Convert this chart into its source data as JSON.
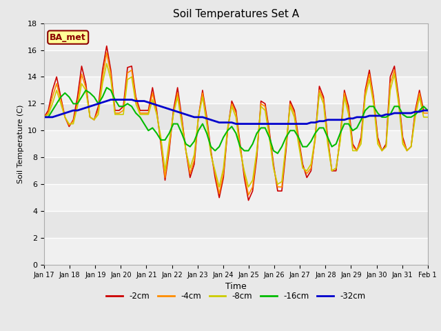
{
  "title": "Soil Temperatures Set A",
  "xlabel": "Time",
  "ylabel": "Soil Temperature (C)",
  "ylim": [
    0,
    18
  ],
  "yticks": [
    0,
    2,
    4,
    6,
    8,
    10,
    12,
    14,
    16,
    18
  ],
  "annotation_text": "BA_met",
  "annotation_color": "#8B0000",
  "annotation_bg": "#FFFF99",
  "fig_facecolor": "#E8E8E8",
  "ax_facecolor": "#F0F0F0",
  "legend_entries": [
    "-2cm",
    "-4cm",
    "-8cm",
    "-16cm",
    "-32cm"
  ],
  "line_colors": [
    "#CC0000",
    "#FF8C00",
    "#CCCC00",
    "#00BB00",
    "#0000CC"
  ],
  "line_widths": [
    1.2,
    1.2,
    1.2,
    1.5,
    2.0
  ],
  "xtick_labels": [
    "Jan 17",
    "Jan 18",
    "Jan 19",
    "Jan 20",
    "Jan 21",
    "Jan 22",
    "Jan 23",
    "Jan 24",
    "Jan 25",
    "Jan 26",
    "Jan 27",
    "Jan 28",
    "Jan 29",
    "Jan 30",
    "Jan 31",
    "Feb 1"
  ],
  "y_2cm": [
    11.0,
    11.5,
    13.0,
    14.0,
    12.5,
    11.0,
    10.3,
    10.8,
    12.5,
    14.8,
    13.5,
    11.0,
    10.8,
    11.8,
    14.5,
    16.3,
    14.5,
    11.5,
    11.5,
    11.8,
    14.7,
    14.8,
    12.5,
    11.5,
    11.5,
    11.5,
    13.2,
    11.5,
    9.0,
    6.3,
    8.5,
    11.5,
    13.2,
    11.0,
    8.5,
    6.5,
    7.5,
    11.0,
    13.0,
    11.0,
    8.5,
    6.5,
    5.0,
    6.5,
    10.0,
    12.2,
    11.5,
    9.0,
    6.5,
    4.8,
    5.5,
    8.0,
    12.2,
    12.0,
    10.0,
    7.5,
    5.5,
    5.5,
    8.5,
    12.2,
    11.5,
    9.5,
    7.5,
    6.5,
    7.0,
    9.5,
    13.3,
    12.5,
    9.5,
    7.0,
    7.0,
    9.5,
    13.0,
    11.8,
    9.0,
    8.5,
    9.5,
    13.0,
    14.5,
    12.5,
    9.5,
    8.5,
    9.0,
    14.0,
    14.8,
    12.5,
    9.5,
    8.5,
    8.8,
    11.5,
    13.0,
    11.5,
    11.5
  ],
  "y_4cm": [
    11.0,
    11.3,
    12.5,
    13.5,
    12.3,
    11.0,
    10.4,
    10.7,
    12.0,
    14.2,
    13.2,
    11.0,
    10.8,
    11.5,
    14.0,
    15.8,
    14.2,
    11.3,
    11.3,
    11.5,
    14.3,
    14.5,
    12.3,
    11.3,
    11.3,
    11.3,
    12.8,
    11.3,
    9.2,
    6.5,
    8.8,
    11.3,
    12.8,
    10.8,
    8.5,
    6.8,
    7.8,
    11.0,
    12.8,
    10.8,
    8.3,
    6.8,
    5.3,
    6.8,
    10.0,
    12.0,
    11.3,
    8.8,
    6.8,
    5.2,
    5.8,
    8.3,
    12.0,
    11.8,
    9.8,
    7.3,
    5.8,
    5.8,
    8.8,
    12.0,
    11.3,
    9.3,
    7.3,
    6.8,
    7.2,
    9.3,
    13.0,
    12.3,
    9.3,
    7.0,
    7.2,
    9.3,
    12.8,
    11.5,
    8.8,
    8.5,
    9.3,
    12.8,
    14.2,
    12.3,
    9.3,
    8.5,
    8.8,
    13.5,
    14.5,
    12.3,
    9.3,
    8.5,
    8.8,
    11.3,
    12.8,
    11.3,
    11.3
  ],
  "y_8cm": [
    11.0,
    11.2,
    12.0,
    13.0,
    12.0,
    11.0,
    10.5,
    10.5,
    11.8,
    13.5,
    13.0,
    11.0,
    10.8,
    11.2,
    13.5,
    15.0,
    13.8,
    11.2,
    11.2,
    11.2,
    13.8,
    14.0,
    12.0,
    11.2,
    11.2,
    11.2,
    12.3,
    11.2,
    9.5,
    7.0,
    9.2,
    11.2,
    12.5,
    10.5,
    8.5,
    7.2,
    8.2,
    11.0,
    12.5,
    10.5,
    8.2,
    7.0,
    5.8,
    7.2,
    10.2,
    11.8,
    11.0,
    8.5,
    7.0,
    5.8,
    6.3,
    8.5,
    11.8,
    11.5,
    9.5,
    7.2,
    6.0,
    6.2,
    9.0,
    11.8,
    11.0,
    9.0,
    7.2,
    7.0,
    7.5,
    9.5,
    12.8,
    12.0,
    9.0,
    7.0,
    7.2,
    9.2,
    12.5,
    11.2,
    8.5,
    8.5,
    9.0,
    12.5,
    13.8,
    12.0,
    9.0,
    8.5,
    8.8,
    13.0,
    14.2,
    12.0,
    9.0,
    8.5,
    8.8,
    11.0,
    12.5,
    11.0,
    11.0
  ],
  "y_16cm": [
    11.0,
    11.0,
    11.5,
    12.0,
    12.5,
    12.8,
    12.5,
    12.0,
    12.0,
    12.5,
    13.0,
    12.8,
    12.5,
    12.0,
    12.5,
    13.2,
    13.0,
    12.3,
    11.8,
    11.8,
    12.0,
    11.8,
    11.3,
    11.0,
    10.5,
    10.0,
    10.2,
    9.8,
    9.3,
    9.3,
    9.8,
    10.5,
    10.5,
    9.8,
    9.0,
    8.8,
    9.2,
    10.0,
    10.5,
    9.8,
    8.8,
    8.5,
    8.8,
    9.5,
    10.0,
    10.3,
    9.8,
    8.8,
    8.5,
    8.5,
    9.0,
    9.8,
    10.2,
    10.2,
    9.5,
    8.5,
    8.3,
    8.8,
    9.5,
    10.0,
    10.0,
    9.5,
    8.8,
    8.8,
    9.2,
    9.8,
    10.2,
    10.2,
    9.5,
    8.8,
    9.0,
    9.8,
    10.5,
    10.5,
    10.0,
    10.2,
    10.8,
    11.5,
    11.8,
    11.8,
    11.3,
    11.0,
    11.0,
    11.2,
    11.8,
    11.8,
    11.2,
    11.0,
    11.0,
    11.2,
    11.5,
    11.8,
    11.5
  ],
  "y_32cm": [
    11.0,
    11.0,
    11.0,
    11.1,
    11.2,
    11.3,
    11.4,
    11.5,
    11.5,
    11.6,
    11.7,
    11.8,
    11.9,
    12.0,
    12.1,
    12.2,
    12.3,
    12.3,
    12.3,
    12.3,
    12.3,
    12.3,
    12.2,
    12.2,
    12.2,
    12.1,
    12.0,
    11.9,
    11.8,
    11.7,
    11.6,
    11.5,
    11.4,
    11.3,
    11.2,
    11.1,
    11.0,
    11.0,
    11.0,
    10.9,
    10.8,
    10.7,
    10.6,
    10.6,
    10.6,
    10.6,
    10.5,
    10.5,
    10.5,
    10.5,
    10.5,
    10.5,
    10.5,
    10.5,
    10.5,
    10.5,
    10.5,
    10.5,
    10.5,
    10.5,
    10.5,
    10.5,
    10.5,
    10.5,
    10.6,
    10.6,
    10.7,
    10.7,
    10.8,
    10.8,
    10.8,
    10.8,
    10.8,
    10.9,
    10.9,
    11.0,
    11.0,
    11.0,
    11.1,
    11.1,
    11.1,
    11.1,
    11.2,
    11.2,
    11.3,
    11.3,
    11.3,
    11.3,
    11.3,
    11.4,
    11.4,
    11.5,
    11.5
  ]
}
